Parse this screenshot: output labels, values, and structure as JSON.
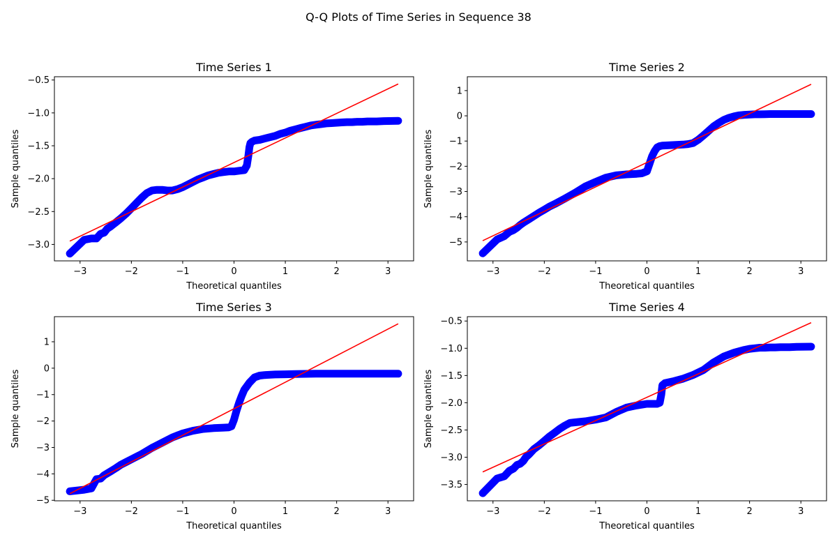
{
  "figure": {
    "title": "Q-Q Plots of Time Series in Sequence 38"
  },
  "colors": {
    "points": "#0000ff",
    "line": "#ff0000",
    "axes": "#000000",
    "background": "#ffffff"
  },
  "chart_data": [
    {
      "type": "scatter",
      "title": "Time Series 1",
      "xlabel": "Theoretical quantiles",
      "ylabel": "Sample quantiles",
      "xlim": [
        -3.5,
        3.5
      ],
      "ylim": [
        -3.25,
        -0.45
      ],
      "xticks": [
        -3,
        -2,
        -1,
        0,
        1,
        2,
        3
      ],
      "xtick_labels": [
        "−3",
        "−2",
        "−1",
        "0",
        "1",
        "2",
        "3"
      ],
      "yticks": [
        -3.0,
        -2.5,
        -2.0,
        -1.5,
        -1.0,
        -0.5
      ],
      "ytick_labels": [
        "−3.0",
        "−2.5",
        "−2.0",
        "−1.5",
        "−1.0",
        "−0.5"
      ],
      "grid": false,
      "series": [
        {
          "kind": "points",
          "x": [
            -3.2,
            -2.92,
            -2.78,
            -2.68,
            -2.6,
            -2.53,
            -2.47,
            -2.41,
            -2.36,
            -2.31,
            -2.2,
            -2.1,
            -2.0,
            -1.9,
            -1.8,
            -1.7,
            -1.6,
            -1.5,
            -1.4,
            -1.3,
            -1.2,
            -1.1,
            -1.0,
            -0.9,
            -0.8,
            -0.7,
            -0.6,
            -0.5,
            -0.4,
            -0.3,
            -0.2,
            -0.1,
            0.0,
            0.1,
            0.2,
            0.25,
            0.28,
            0.3,
            0.32,
            0.35,
            0.4,
            0.5,
            0.6,
            0.7,
            0.8,
            0.9,
            1.0,
            1.1,
            1.2,
            1.3,
            1.4,
            1.5,
            1.6,
            1.7,
            1.8,
            1.9,
            2.0,
            2.1,
            2.2,
            2.3,
            2.4,
            2.5,
            2.6,
            2.68,
            2.78,
            2.92,
            3.2
          ],
          "y": [
            -3.14,
            -2.93,
            -2.91,
            -2.91,
            -2.84,
            -2.82,
            -2.76,
            -2.73,
            -2.7,
            -2.67,
            -2.6,
            -2.53,
            -2.45,
            -2.37,
            -2.29,
            -2.22,
            -2.18,
            -2.17,
            -2.17,
            -2.18,
            -2.18,
            -2.16,
            -2.13,
            -2.09,
            -2.05,
            -2.01,
            -1.98,
            -1.95,
            -1.93,
            -1.91,
            -1.9,
            -1.89,
            -1.89,
            -1.88,
            -1.87,
            -1.8,
            -1.65,
            -1.52,
            -1.46,
            -1.44,
            -1.42,
            -1.41,
            -1.39,
            -1.37,
            -1.35,
            -1.32,
            -1.3,
            -1.27,
            -1.25,
            -1.23,
            -1.21,
            -1.19,
            -1.18,
            -1.17,
            -1.16,
            -1.155,
            -1.15,
            -1.145,
            -1.14,
            -1.14,
            -1.135,
            -1.135,
            -1.13,
            -1.13,
            -1.13,
            -1.125,
            -1.12
          ]
        },
        {
          "kind": "line",
          "x": [
            -3.2,
            3.2
          ],
          "y": [
            -2.95,
            -0.56
          ]
        }
      ]
    },
    {
      "type": "scatter",
      "title": "Time Series 2",
      "xlabel": "Theoretical quantiles",
      "ylabel": "Sample quantiles",
      "xlim": [
        -3.5,
        3.5
      ],
      "ylim": [
        -5.75,
        1.55
      ],
      "xticks": [
        -3,
        -2,
        -1,
        0,
        1,
        2,
        3
      ],
      "xtick_labels": [
        "−3",
        "−2",
        "−1",
        "0",
        "1",
        "2",
        "3"
      ],
      "yticks": [
        -5,
        -4,
        -3,
        -2,
        -1,
        0,
        1
      ],
      "ytick_labels": [
        "−5",
        "−4",
        "−3",
        "−2",
        "−1",
        "0",
        "1"
      ],
      "grid": false,
      "series": [
        {
          "kind": "points",
          "x": [
            -3.2,
            -2.92,
            -2.78,
            -2.68,
            -2.6,
            -2.53,
            -2.47,
            -2.41,
            -2.3,
            -2.2,
            -2.1,
            -2.0,
            -1.9,
            -1.8,
            -1.6,
            -1.4,
            -1.2,
            -1.0,
            -0.8,
            -0.6,
            -0.4,
            -0.2,
            -0.1,
            0.0,
            0.05,
            0.1,
            0.15,
            0.2,
            0.25,
            0.3,
            0.4,
            0.5,
            0.6,
            0.7,
            0.8,
            0.9,
            1.0,
            1.1,
            1.2,
            1.3,
            1.4,
            1.5,
            1.6,
            1.7,
            1.8,
            1.9,
            2.0,
            2.1,
            2.2,
            2.3,
            2.4,
            2.5,
            2.6,
            2.68,
            2.78,
            2.92,
            3.2
          ],
          "y": [
            -5.45,
            -4.9,
            -4.77,
            -4.6,
            -4.53,
            -4.43,
            -4.33,
            -4.24,
            -4.1,
            -3.97,
            -3.84,
            -3.72,
            -3.6,
            -3.5,
            -3.28,
            -3.05,
            -2.8,
            -2.62,
            -2.45,
            -2.36,
            -2.32,
            -2.3,
            -2.28,
            -2.2,
            -1.9,
            -1.6,
            -1.4,
            -1.25,
            -1.2,
            -1.18,
            -1.17,
            -1.16,
            -1.15,
            -1.14,
            -1.12,
            -1.08,
            -0.95,
            -0.78,
            -0.6,
            -0.42,
            -0.28,
            -0.16,
            -0.08,
            -0.02,
            0.02,
            0.04,
            0.05,
            0.06,
            0.06,
            0.065,
            0.07,
            0.07,
            0.07,
            0.07,
            0.07,
            0.07,
            0.07
          ]
        },
        {
          "kind": "line",
          "x": [
            -3.2,
            3.2
          ],
          "y": [
            -4.95,
            1.25
          ]
        }
      ]
    },
    {
      "type": "scatter",
      "title": "Time Series 3",
      "xlabel": "Theoretical quantiles",
      "ylabel": "Sample quantiles",
      "xlim": [
        -3.5,
        3.5
      ],
      "ylim": [
        -5.02,
        1.95
      ],
      "xticks": [
        -3,
        -2,
        -1,
        0,
        1,
        2,
        3
      ],
      "xtick_labels": [
        "−3",
        "−2",
        "−1",
        "0",
        "1",
        "2",
        "3"
      ],
      "yticks": [
        -5,
        -4,
        -3,
        -2,
        -1,
        0,
        1
      ],
      "ytick_labels": [
        "−5",
        "−4",
        "−3",
        "−2",
        "−1",
        "0",
        "1"
      ],
      "grid": false,
      "series": [
        {
          "kind": "points",
          "x": [
            -3.2,
            -2.92,
            -2.78,
            -2.68,
            -2.6,
            -2.53,
            -2.4,
            -2.3,
            -2.2,
            -2.1,
            -2.0,
            -1.9,
            -1.8,
            -1.6,
            -1.4,
            -1.2,
            -1.0,
            -0.8,
            -0.6,
            -0.4,
            -0.2,
            -0.1,
            -0.05,
            0.0,
            0.05,
            0.1,
            0.15,
            0.2,
            0.3,
            0.4,
            0.5,
            0.6,
            0.8,
            1.0,
            1.2,
            1.4,
            1.6,
            1.8,
            2.0,
            2.2,
            2.4,
            2.6,
            2.68,
            2.78,
            2.92,
            3.2
          ],
          "y": [
            -4.66,
            -4.6,
            -4.55,
            -4.2,
            -4.18,
            -4.05,
            -3.9,
            -3.78,
            -3.65,
            -3.55,
            -3.45,
            -3.35,
            -3.25,
            -3.02,
            -2.82,
            -2.62,
            -2.47,
            -2.37,
            -2.3,
            -2.27,
            -2.25,
            -2.24,
            -2.2,
            -1.95,
            -1.6,
            -1.3,
            -1.05,
            -0.82,
            -0.55,
            -0.35,
            -0.28,
            -0.26,
            -0.24,
            -0.23,
            -0.22,
            -0.215,
            -0.21,
            -0.21,
            -0.21,
            -0.21,
            -0.21,
            -0.21,
            -0.21,
            -0.21,
            -0.21,
            -0.21
          ]
        },
        {
          "kind": "line",
          "x": [
            -3.2,
            3.2
          ],
          "y": [
            -4.75,
            1.68
          ]
        }
      ]
    },
    {
      "type": "scatter",
      "title": "Time Series 4",
      "xlabel": "Theoretical quantiles",
      "ylabel": "Sample quantiles",
      "xlim": [
        -3.5,
        3.5
      ],
      "ylim": [
        -3.8,
        -0.42
      ],
      "xticks": [
        -3,
        -2,
        -1,
        0,
        1,
        2,
        3
      ],
      "xtick_labels": [
        "−3",
        "−2",
        "−1",
        "0",
        "1",
        "2",
        "3"
      ],
      "yticks": [
        -3.5,
        -3.0,
        -2.5,
        -2.0,
        -1.5,
        -1.0,
        -0.5
      ],
      "ytick_labels": [
        "−3.5",
        "−3.0",
        "−2.5",
        "−2.0",
        "−1.5",
        "−1.0",
        "−0.5"
      ],
      "grid": false,
      "series": [
        {
          "kind": "points",
          "x": [
            -3.2,
            -2.92,
            -2.78,
            -2.68,
            -2.6,
            -2.53,
            -2.47,
            -2.41,
            -2.36,
            -2.3,
            -2.2,
            -2.1,
            -2.0,
            -1.9,
            -1.8,
            -1.7,
            -1.6,
            -1.5,
            -1.4,
            -1.2,
            -1.0,
            -0.8,
            -0.6,
            -0.4,
            -0.2,
            0.0,
            0.1,
            0.2,
            0.25,
            0.28,
            0.3,
            0.35,
            0.5,
            0.7,
            0.9,
            1.1,
            1.3,
            1.5,
            1.7,
            1.9,
            2.0,
            2.1,
            2.2,
            2.3,
            2.4,
            2.5,
            2.6,
            2.68,
            2.78,
            2.92,
            3.2
          ],
          "y": [
            -3.66,
            -3.39,
            -3.35,
            -3.25,
            -3.21,
            -3.14,
            -3.12,
            -3.07,
            -3.0,
            -2.95,
            -2.85,
            -2.78,
            -2.7,
            -2.62,
            -2.55,
            -2.48,
            -2.42,
            -2.37,
            -2.36,
            -2.34,
            -2.31,
            -2.27,
            -2.17,
            -2.09,
            -2.05,
            -2.02,
            -2.02,
            -2.02,
            -2.0,
            -1.85,
            -1.68,
            -1.64,
            -1.61,
            -1.56,
            -1.49,
            -1.4,
            -1.26,
            -1.15,
            -1.08,
            -1.03,
            -1.01,
            -1.0,
            -0.99,
            -0.99,
            -0.985,
            -0.985,
            -0.98,
            -0.98,
            -0.98,
            -0.975,
            -0.97
          ]
        },
        {
          "kind": "line",
          "x": [
            -3.2,
            3.2
          ],
          "y": [
            -3.27,
            -0.53
          ]
        }
      ]
    }
  ]
}
